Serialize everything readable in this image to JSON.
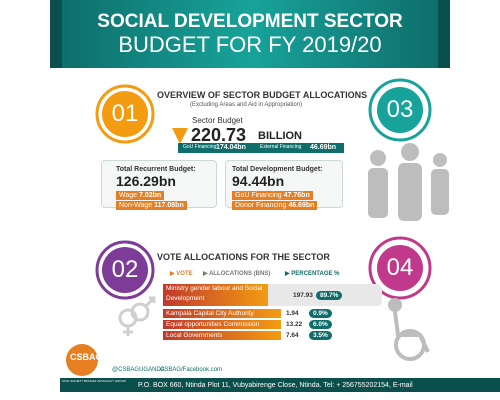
{
  "header": {
    "title": "SOCIAL DEVELOPMENT SECTOR",
    "subtitle": "BUDGET FOR FY 2019/20"
  },
  "section1": {
    "number": "01",
    "title": "OVERVIEW OF SECTOR BUDGET ALLOCATIONS",
    "subtitle": "(Excluding Areas and Aid in Appropriation)",
    "sector_budget_label": "Sector Budget",
    "sector_budget": "220.73",
    "sector_budget_unit": "BILLION",
    "gou_label": "GoU Financing",
    "gou_value": "174.04bn",
    "external_label": "External Financing",
    "external_value": "46.69bn",
    "recurrent": {
      "label": "Total Recurrent Budget:",
      "value": "126.29bn",
      "items": [
        {
          "label": "Wage",
          "value": "7.02bn"
        },
        {
          "label": "Non-Wage",
          "value": "117.08bn"
        }
      ]
    },
    "development": {
      "label": "Total Development Budget:",
      "value": "94.44bn",
      "items": [
        {
          "label": "GoU Financing",
          "value": "47.76bn"
        },
        {
          "label": "Donor Financing",
          "value": "46.69bn"
        }
      ]
    }
  },
  "section2": {
    "number": "02",
    "title": "VOTE ALLOCATIONS FOR THE SECTOR",
    "legend": [
      "VOTE",
      "ALLOCATIONS (BNS)",
      "PERCENTAGE %"
    ],
    "rows": [
      {
        "vote": "Ministry gender labour and Social Development",
        "allocation": 197.93,
        "percentage": "89.7%"
      },
      {
        "vote": "Kampala Capital City Authority",
        "allocation": 1.94,
        "percentage": "0.9%"
      },
      {
        "vote": "Equal opportunities Commission",
        "allocation": 13.22,
        "percentage": "6.0%"
      },
      {
        "vote": "Local Governments",
        "allocation": 7.64,
        "percentage": "3.5%"
      }
    ]
  },
  "side": {
    "numbers": [
      "03",
      "04"
    ]
  },
  "footer": {
    "org": "CSBAG",
    "org_full": "CIVIL SOCIETY BUDGET ADVOCACY GROUP",
    "twitter": "@CSBAGUGANDA",
    "facebook": "CSBAG/Facebook.com",
    "address": "P.O. BOX 660, Ntinda Plot 11, Vubyabirenge Close, Ntinda. Tel: + 256755202154, E-mail"
  }
}
